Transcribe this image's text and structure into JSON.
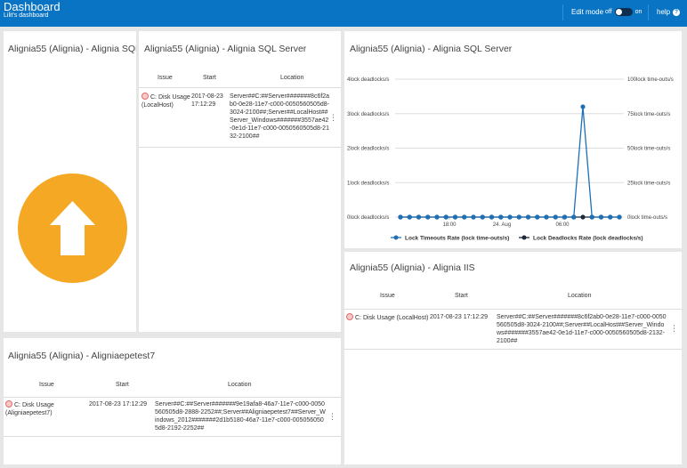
{
  "header": {
    "title": "Dashboard",
    "subtitle": "Lilit's dashboard",
    "edit_mode_label": "Edit mode",
    "toggle_off": "off",
    "toggle_on": "on",
    "help_label": "help",
    "help_glyph": "?"
  },
  "colors": {
    "topbar": "#0a74c4",
    "status_circle": "#f4a824",
    "series_timeouts": "#1f6fb5",
    "series_deadlocks": "#1e2a3a"
  },
  "panel_status": {
    "title": "Alignia55 (Alignia) - Alignia SQL Server",
    "icon": "arrow-up-icon"
  },
  "panel_sql": {
    "title": "Alignia55 (Alignia) - Alignia SQL Server",
    "columns": [
      "Issue",
      "Start",
      "Location"
    ],
    "rows": [
      {
        "issue": "C: Disk Usage (LocalHost)",
        "start": "2017-08-23 17:12:29",
        "location": "Server##C:##Server#######8c6f2ab0-0e28-11e7-c000-0050560505d8-3024-2100##;Server##LocalHost##Server_Windows#######3557ae42-0e1d-11e7-c000-0050560505d8-2132-2100##"
      }
    ]
  },
  "panel_chart": {
    "title": "Alignia55 (Alignia) - Alignia SQL Server"
  },
  "chart_data": {
    "type": "line",
    "title": "Alignia55 (Alignia) - Alignia SQL Server",
    "x_tick_labels": [
      "18:00",
      "24. Aug",
      "06:00"
    ],
    "y_left": {
      "unit": "lock deadlocks/s",
      "ticks": [
        0,
        1,
        2,
        3,
        4
      ],
      "tick_labels": [
        "0lock deadlocks/s",
        "1lock deadlocks/s",
        "2lock deadlocks/s",
        "3lock deadlocks/s",
        "4lock deadlocks/s"
      ],
      "ylim": [
        0,
        4
      ]
    },
    "y_right": {
      "unit": "lock time-outs/s",
      "ticks": [
        0,
        25,
        50,
        75,
        100
      ],
      "tick_labels": [
        "0lock time-outs/s",
        "25lock time-outs/s",
        "50lock time-outs/s",
        "75lock time-outs/s",
        "100lock time-outs/s"
      ],
      "ylim": [
        0,
        100
      ]
    },
    "grid": true,
    "legend_position": "bottom",
    "series": [
      {
        "name": "Lock Timeouts Rate (lock time-outs/s)",
        "axis": "right",
        "color": "#1f6fb5",
        "values": [
          0,
          0,
          0,
          0,
          0,
          0,
          0,
          0,
          0,
          0,
          0,
          0,
          0,
          0,
          0,
          0,
          0,
          0,
          0,
          0,
          80,
          0,
          0,
          0,
          0
        ]
      },
      {
        "name": "Lock Deadlocks Rate (lock deadlocks/s)",
        "axis": "left",
        "color": "#1e2a3a",
        "values": [
          0,
          0,
          0,
          0,
          0,
          0,
          0,
          0,
          0,
          0,
          0,
          0,
          0,
          0,
          0,
          0,
          0,
          0,
          0,
          0,
          0,
          0,
          0,
          0,
          0
        ]
      }
    ]
  },
  "panel_pe": {
    "title": "Alignia55 (Alignia) - Aligniaepetest7",
    "columns": [
      "Issue",
      "Start",
      "Location"
    ],
    "rows": [
      {
        "issue": "C: Disk Usage (Aligniaepetest7)",
        "start": "2017-08-23 17:12:29",
        "location": "Server##C:##Server#######9e19afa8-46a7-11e7-c000-0050560505d8-2888-2252##;Server##Aligniaepetest7##Server_Windows_2012#######2d1b5180-46a7-11e7-c000-0050560505d8-2192-2252##"
      }
    ]
  },
  "panel_iis": {
    "title": "Alignia55 (Alignia) - Alignia IIS",
    "columns": [
      "Issue",
      "Start",
      "Location"
    ],
    "rows": [
      {
        "issue": "C: Disk Usage (LocalHost)",
        "start": "2017-08-23 17:12:29",
        "location": "Server##C:##Server#######8c6f2ab0-0e28-11e7-c000-0050560505d8-3024-2100##;Server##LocalHost##Server_Windows#######3557ae42-0e1d-11e7-c000-0050560505d8-2132-2100##"
      }
    ]
  }
}
